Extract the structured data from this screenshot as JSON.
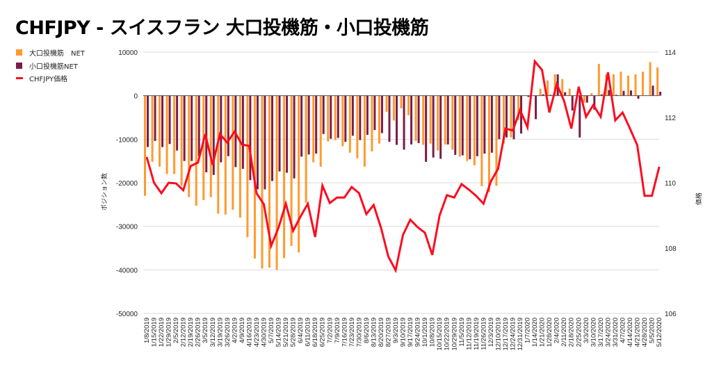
{
  "title": "CHFJPY - スイスフラン 大口投機筋・小口投機筋",
  "colors": {
    "large": "#ff9a2e",
    "small": "#7b1c48",
    "price": "#ff0a1e"
  },
  "chart_data": {
    "type": "bar+line",
    "title": "CHFJPY - スイスフラン 大口投機筋・小口投機筋",
    "ylabel": "ポジション数",
    "y2label": "価格",
    "ylim": [
      -50000,
      10000
    ],
    "yticks": [
      "10000",
      "0",
      "-10000",
      "-20000",
      "-30000",
      "-40000",
      "-50000"
    ],
    "y2lim": [
      106,
      114
    ],
    "y2ticks": [
      "114",
      "112",
      "110",
      "108",
      "106"
    ],
    "legend_position": "left",
    "categories": [
      "1/8/2019",
      "1/15/2019",
      "1/22/2019",
      "1/29/2019",
      "2/5/2019",
      "2/12/2019",
      "2/19/2019",
      "2/26/2019",
      "3/5/2019",
      "3/12/2019",
      "3/19/2019",
      "3/26/2019",
      "4/2/2019",
      "4/9/2019",
      "4/16/2019",
      "4/23/2019",
      "4/30/2019",
      "5/7/2019",
      "5/14/2019",
      "5/21/2019",
      "5/28/2019",
      "6/4/2019",
      "6/11/2019",
      "6/18/2019",
      "6/25/2019",
      "7/2/2019",
      "7/9/2019",
      "7/16/2019",
      "7/23/2019",
      "7/30/2019",
      "8/6/2019",
      "8/13/2019",
      "8/20/2019",
      "8/27/2019",
      "9/3/2019",
      "9/10/2019",
      "9/17/2019",
      "9/24/2019",
      "10/1/2019",
      "10/8/2019",
      "10/15/2019",
      "10/22/2019",
      "10/29/2019",
      "11/5/2019",
      "11/12/2019",
      "11/19/2019",
      "11/26/2019",
      "12/3/2019",
      "12/10/2019",
      "12/17/2019",
      "12/24/2019",
      "12/31/2019",
      "1/7/2020",
      "1/14/2020",
      "1/21/2020",
      "1/28/2020",
      "2/4/2020",
      "2/11/2020",
      "2/18/2020",
      "2/25/2020",
      "3/3/2020",
      "3/10/2020",
      "3/17/2020",
      "3/24/2020",
      "3/31/2020",
      "4/7/2020",
      "4/14/2020",
      "4/21/2020",
      "4/28/2020",
      "5/5/2020",
      "5/12/2020"
    ],
    "series": [
      {
        "name": "大口投機筋　NET",
        "type": "bar",
        "axis": "left",
        "values": [
          -23000,
          -15200,
          -16300,
          -18000,
          -18000,
          -20700,
          -23300,
          -25300,
          -24000,
          -23300,
          -27100,
          -27300,
          -26200,
          -28000,
          -32500,
          -37400,
          -39700,
          -39500,
          -40000,
          -37300,
          -34500,
          -36000,
          -24600,
          -15300,
          -16300,
          -10500,
          -10200,
          -11600,
          -13100,
          -14400,
          -16300,
          -12800,
          -11000,
          -3700,
          -5700,
          -2900,
          -4500,
          -10400,
          -11300,
          -11000,
          -12600,
          -11200,
          -12400,
          -14000,
          -15000,
          -16000,
          -20800,
          -22100,
          -20700,
          -11000,
          -9600,
          -5600,
          0,
          0,
          1600,
          3500,
          4900,
          3800,
          1600,
          0,
          -1600,
          600,
          7300,
          4900,
          4900,
          5500,
          4600,
          4900,
          5500,
          7700,
          6500
        ]
      },
      {
        "name": "小口投機筋NET",
        "type": "bar",
        "axis": "left",
        "values": [
          -11800,
          -10400,
          -11800,
          -11100,
          -12600,
          -15000,
          -15000,
          -13900,
          -17600,
          -18200,
          -15300,
          -13900,
          -16400,
          -16800,
          -19400,
          -21500,
          -21500,
          -19600,
          -17400,
          -17700,
          -19000,
          -14000,
          -13500,
          -13300,
          -8800,
          -9900,
          -9700,
          -10600,
          -9200,
          -10200,
          -9000,
          -7900,
          -8600,
          -10600,
          -11300,
          -12400,
          -11200,
          -10900,
          -15200,
          -14200,
          -14500,
          -11200,
          -13600,
          -13700,
          -14600,
          -13900,
          -13300,
          -13100,
          -10000,
          -9600,
          -10000,
          -8700,
          -300,
          -5400,
          300,
          200,
          4900,
          800,
          -3400,
          -9600,
          -1600,
          -3200,
          300,
          1300,
          200,
          1100,
          1200,
          -700,
          0,
          2300,
          900
        ]
      },
      {
        "name": "CHFJPY価格",
        "type": "line",
        "axis": "right",
        "values": [
          110.79,
          110.0,
          109.68,
          110.0,
          109.98,
          109.77,
          110.51,
          110.62,
          111.49,
          110.55,
          111.49,
          111.23,
          111.57,
          111.17,
          111.13,
          109.68,
          109.34,
          108.07,
          108.62,
          109.36,
          108.53,
          108.96,
          109.36,
          108.34,
          109.91,
          109.38,
          109.55,
          109.55,
          109.87,
          109.68,
          109.04,
          109.32,
          108.62,
          107.74,
          107.32,
          108.4,
          108.87,
          108.64,
          108.47,
          107.79,
          109.0,
          109.62,
          109.55,
          109.96,
          109.79,
          109.6,
          109.36,
          110.04,
          110.43,
          111.66,
          111.6,
          112.23,
          111.7,
          113.72,
          113.45,
          112.15,
          113.02,
          112.51,
          111.66,
          112.94,
          112.02,
          112.38,
          112.02,
          113.38,
          111.91,
          112.15,
          111.66,
          111.15,
          109.6,
          109.6,
          110.49
        ]
      }
    ]
  }
}
